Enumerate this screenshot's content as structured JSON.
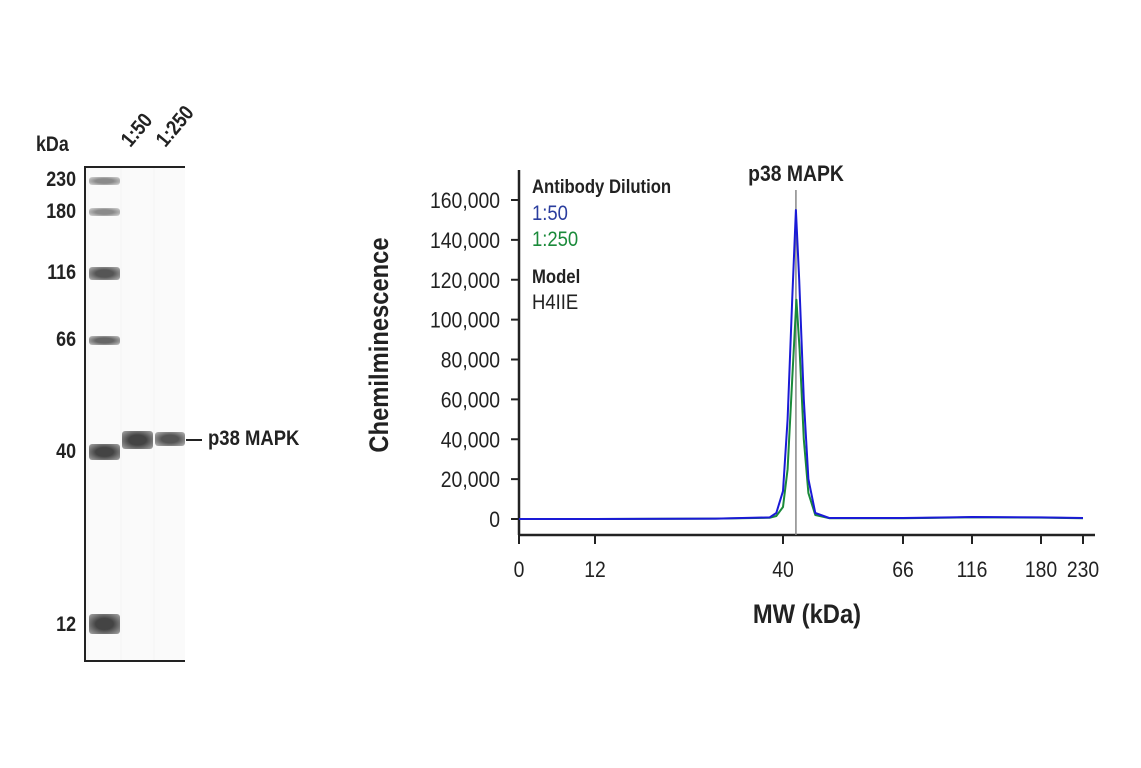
{
  "blot": {
    "unit_label": "kDa",
    "lanes": [
      "1:50",
      "1:250"
    ],
    "markers": [
      {
        "label": "230",
        "kda": 230
      },
      {
        "label": "180",
        "kda": 180
      },
      {
        "label": "116",
        "kda": 116
      },
      {
        "label": "66",
        "kda": 66
      },
      {
        "label": "40",
        "kda": 40
      },
      {
        "label": "12",
        "kda": 12
      }
    ],
    "target_label": "p38 MAPK"
  },
  "chart_data": {
    "type": "line",
    "title": "p38 MAPK",
    "xlabel": "MW (kDa)",
    "ylabel": "Chemilminescence",
    "x_ticks": [
      0,
      12,
      40,
      66,
      116,
      180,
      230
    ],
    "y_ticks": [
      0,
      20000,
      40000,
      60000,
      80000,
      100000,
      120000,
      140000,
      160000
    ],
    "y_tick_labels": [
      "0",
      "20,000",
      "40,000",
      "60,000",
      "80,000",
      "100,000",
      "120,000",
      "140,000",
      "160,000"
    ],
    "ylim": [
      0,
      160000
    ],
    "x_scale": "nonlinear (MW)",
    "grid": false,
    "marker_line_kda": 42.8,
    "legend": {
      "title": "Antibody Dilution",
      "model_title": "Model",
      "model_value": "H4IIE",
      "placement": "top-left"
    },
    "series": [
      {
        "name": "1:50",
        "color": "#1a1ad6",
        "x": [
          0,
          12,
          30,
          38,
          39,
          40,
          41,
          42,
          42.8,
          43.5,
          44.5,
          45.5,
          47,
          50,
          66,
          100,
          116,
          180,
          230
        ],
        "y": [
          0,
          0,
          200,
          800,
          3000,
          14000,
          50000,
          110000,
          155000,
          120000,
          60000,
          20000,
          3000,
          500,
          500,
          800,
          1000,
          800,
          500
        ]
      },
      {
        "name": "1:250",
        "color": "#1a8a3a",
        "x": [
          0,
          12,
          30,
          38,
          39,
          40,
          41,
          42,
          42.9,
          43.6,
          44.5,
          45.5,
          47,
          50,
          66,
          100,
          116,
          180,
          230
        ],
        "y": [
          0,
          0,
          200,
          600,
          1500,
          6000,
          25000,
          70000,
          110000,
          85000,
          40000,
          13000,
          2000,
          400,
          400,
          700,
          900,
          700,
          400
        ]
      }
    ]
  }
}
